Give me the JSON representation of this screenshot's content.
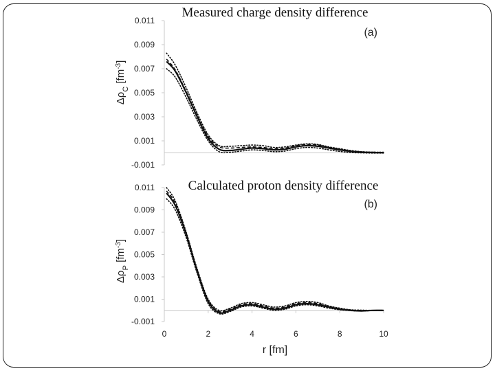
{
  "chart_data": [
    {
      "type": "line",
      "title": "Measured charge density difference",
      "panel_label": "(a)",
      "ylabel_main": "Δρ",
      "ylabel_sub": "C",
      "ylabel_unit": " [fm",
      "ylabel_exp": "-3",
      "ylabel_close": "]",
      "xlabel": "",
      "xlim": [
        0,
        10
      ],
      "ylim": [
        -0.001,
        0.011
      ],
      "yticks": [
        "-0.001",
        "0.001",
        "0.003",
        "0.005",
        "0.007",
        "0.009",
        "0.011"
      ],
      "grid": false,
      "x": [
        0.1,
        0.5,
        1.0,
        1.5,
        2.0,
        2.5,
        3.0,
        3.5,
        4.0,
        4.5,
        5.0,
        5.5,
        6.0,
        6.5,
        7.0,
        7.5,
        8.0,
        8.5,
        9.0,
        9.5,
        10.0
      ],
      "series": [
        {
          "style": "solid",
          "values": [
            0.0076,
            0.0068,
            0.005,
            0.003,
            0.0012,
            0.0003,
            0.0002,
            0.0003,
            0.0004,
            0.00035,
            0.00025,
            0.0003,
            0.0005,
            0.0006,
            0.00055,
            0.0004,
            0.00025,
            0.00012,
            5e-05,
            3e-05,
            2e-05
          ]
        },
        {
          "style": "dashed",
          "values": [
            0.0078,
            0.0069,
            0.0051,
            0.0031,
            0.00135,
            0.0005,
            0.0004,
            0.00045,
            0.0005,
            0.00045,
            0.00035,
            0.0004,
            0.0006,
            0.0007,
            0.00065,
            0.00045,
            0.0003,
            0.00015,
            8e-05,
            5e-05,
            4e-05
          ]
        },
        {
          "style": "dotted",
          "values": [
            0.0083,
            0.0073,
            0.0054,
            0.0033,
            0.0015,
            0.0006,
            0.00055,
            0.0006,
            0.00065,
            0.0006,
            0.00045,
            0.0005,
            0.00065,
            0.00075,
            0.0007,
            0.0005,
            0.00035,
            0.0002,
            0.0001,
            6e-05,
            5e-05
          ]
        },
        {
          "style": "dotted",
          "values": [
            0.007,
            0.0063,
            0.0046,
            0.0027,
            0.001,
            0.0001,
            5e-05,
            0.00015,
            0.00025,
            0.0002,
            0.0001,
            0.00015,
            0.00035,
            0.00045,
            0.0004,
            0.00025,
            0.00012,
            3e-05,
            0.0,
            -2e-05,
            -2e-05
          ]
        }
      ]
    },
    {
      "type": "line",
      "title": "Calculated proton density difference",
      "panel_label": "(b)",
      "ylabel_main": "Δρ",
      "ylabel_sub": "P",
      "ylabel_unit": " [fm",
      "ylabel_exp": "-3",
      "ylabel_close": "]",
      "xlabel": "r [fm]",
      "xlim": [
        0,
        10
      ],
      "xticks": [
        "0",
        "2",
        "4",
        "6",
        "8",
        "10"
      ],
      "ylim": [
        -0.001,
        0.011
      ],
      "yticks": [
        "-0.001",
        "0.001",
        "0.003",
        "0.005",
        "0.007",
        "0.009",
        "0.011"
      ],
      "grid": false,
      "x": [
        0.1,
        0.5,
        1.0,
        1.5,
        2.0,
        2.5,
        3.0,
        3.5,
        4.0,
        4.5,
        5.0,
        5.5,
        6.0,
        6.5,
        7.0,
        7.5,
        8.0,
        8.5,
        9.0,
        9.5,
        10.0
      ],
      "series": [
        {
          "style": "solid",
          "values": [
            0.0105,
            0.0094,
            0.0068,
            0.0035,
            0.0008,
            -0.0002,
            0.0,
            0.0004,
            0.0005,
            0.0003,
            0.0001,
            0.0002,
            0.0005,
            0.0006,
            0.0005,
            0.0003,
            0.0001,
            0.0,
            -5e-05,
            0.0,
            0.0
          ]
        },
        {
          "style": "dashed",
          "values": [
            0.0107,
            0.0096,
            0.0069,
            0.0036,
            0.0009,
            -0.0001,
            0.0001,
            0.0005,
            0.0006,
            0.0004,
            0.0002,
            0.0003,
            0.0006,
            0.0007,
            0.0006,
            0.00035,
            0.00015,
            3e-05,
            0.0,
            0.0,
            0.0
          ]
        },
        {
          "style": "dotted",
          "values": [
            0.011,
            0.0098,
            0.007,
            0.0037,
            0.001,
            0.0,
            0.0002,
            0.0006,
            0.0007,
            0.0005,
            0.0003,
            0.0004,
            0.0007,
            0.0008,
            0.0007,
            0.0004,
            0.0002,
            5e-05,
            2e-05,
            0.0,
            0.0
          ]
        },
        {
          "style": "dotted",
          "values": [
            0.01,
            0.009,
            0.0065,
            0.0033,
            0.0006,
            -0.0003,
            -0.0001,
            0.0003,
            0.0004,
            0.0002,
            0.0,
            0.0001,
            0.0004,
            0.0005,
            0.0004,
            0.0002,
            5e-05,
            -3e-05,
            -6e-05,
            -2e-05,
            -1e-05
          ]
        }
      ]
    }
  ]
}
